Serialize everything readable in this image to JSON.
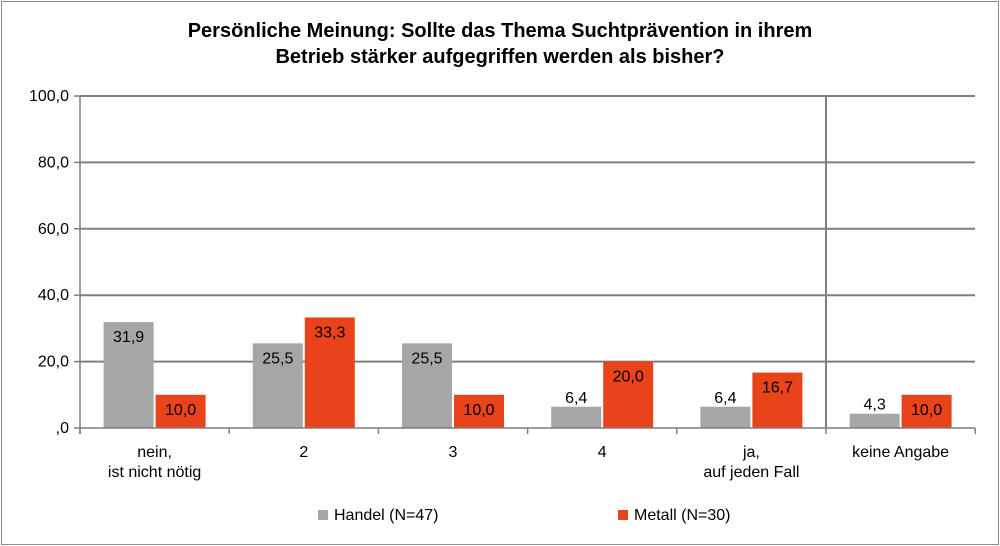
{
  "chart_data": {
    "type": "bar",
    "title_lines": [
      "Persönliche Meinung: Sollte das Thema Suchtprävention in ihrem",
      "Betrieb stärker aufgegriffen werden als bisher?"
    ],
    "categories": [
      [
        "nein,",
        "ist nicht nötig"
      ],
      [
        "2"
      ],
      [
        "3"
      ],
      [
        "4"
      ],
      [
        "ja,",
        "auf jeden Fall"
      ],
      [
        "keine Angabe"
      ]
    ],
    "series": [
      {
        "name": "Handel (N=47)",
        "color": "#a6a6a6",
        "values": [
          31.9,
          25.5,
          25.5,
          6.4,
          6.4,
          4.3
        ],
        "labels": [
          "31,9",
          "25,5",
          "25,5",
          "6,4",
          "6,4",
          "4,3"
        ]
      },
      {
        "name": "Metall (N=30)",
        "color": "#e8431a",
        "values": [
          10.0,
          33.3,
          10.0,
          20.0,
          16.7,
          10.0
        ],
        "labels": [
          "10,0",
          "33,3",
          "10,0",
          "20,0",
          "16,7",
          "10,0"
        ]
      }
    ],
    "ylim": [
      0,
      100
    ],
    "yticks": [
      0,
      20,
      40,
      60,
      80,
      100
    ],
    "ytick_labels": [
      ",0",
      "20,0",
      "40,0",
      "60,0",
      "80,0",
      "100,0"
    ],
    "grid": true,
    "legend_position": "bottom"
  }
}
